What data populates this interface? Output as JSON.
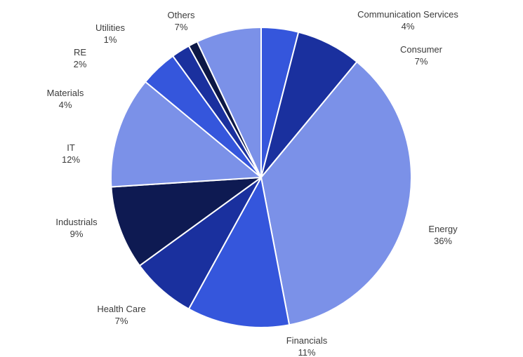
{
  "chart_data": {
    "type": "pie",
    "title": "",
    "legend": false,
    "background": "#ffffff",
    "label_color": "#3b3b3b",
    "stroke_color": "#ffffff",
    "start_angle_deg": 0,
    "direction": "clockwise",
    "units": "%",
    "slices": [
      {
        "label": "Communication Services",
        "pct_label": "4%",
        "value": 4,
        "color": "#3556dc"
      },
      {
        "label": "Consumer",
        "pct_label": "7%",
        "value": 7,
        "color": "#1a309e"
      },
      {
        "label": "Energy",
        "pct_label": "36%",
        "value": 36,
        "color": "#7b91e8"
      },
      {
        "label": "Financials",
        "pct_label": "11%",
        "value": 11,
        "color": "#3556dc"
      },
      {
        "label": "Health Care",
        "pct_label": "7%",
        "value": 7,
        "color": "#1a309e"
      },
      {
        "label": "Industrials",
        "pct_label": "9%",
        "value": 9,
        "color": "#0e1a52"
      },
      {
        "label": "IT",
        "pct_label": "12%",
        "value": 12,
        "color": "#7b91e8"
      },
      {
        "label": "Materials",
        "pct_label": "4%",
        "value": 4,
        "color": "#3556dc"
      },
      {
        "label": "RE",
        "pct_label": "2%",
        "value": 2,
        "color": "#1a309e"
      },
      {
        "label": "Utilities",
        "pct_label": "1%",
        "value": 1,
        "color": "#0c1745"
      },
      {
        "label": "Others",
        "pct_label": "7%",
        "value": 7,
        "color": "#7b91e8"
      }
    ]
  }
}
